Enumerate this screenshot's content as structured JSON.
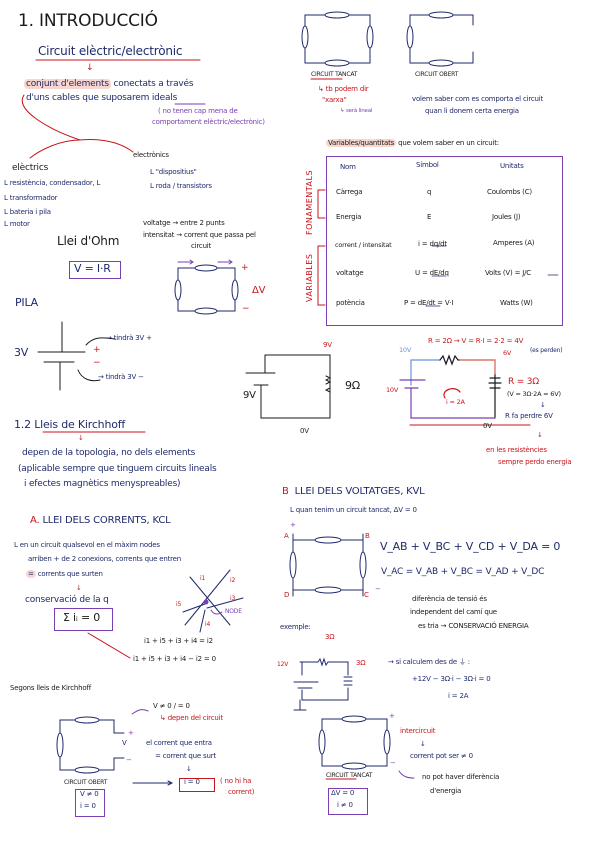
{
  "intro": {
    "title": "1. INTRODUCCIÓ",
    "subtitle": "Circuit elèctric/electrònic",
    "arrow": "↓",
    "def_line1_hl": "conjunt d'elements",
    "def_line1_rest": " conectats a través",
    "def_line2": "d'uns cables que suposarem ",
    "def_line2_ul": "ideals",
    "note_line1": "( no tenen cap mena de",
    "note_line2": "comportament elèctric/electrònic)",
    "electrics_title": "elèctrics",
    "electrics": [
      "L resistència, condensador, L",
      "L transformador",
      "L bateria i pila",
      "L motor"
    ],
    "electronics_title": "electrònics",
    "electronics": [
      "L \"dispositius\"",
      "L roda / transistors"
    ],
    "voltage_def": "voltatge → entre 2 punts",
    "intensity_def": "intensitat → corrent que passa pel",
    "intensity_def2": "circuit",
    "ohm_title": "Llei d'Ohm",
    "ohm_formula": "V = I·R",
    "delta_v": "ΔV",
    "plus": "+",
    "minus": "−"
  },
  "top_circuits": {
    "closed_label": "CIRCUIT TANCAT",
    "open_label": "CIRCUIT OBERT",
    "closed_note1": "↳ tb podem dir",
    "closed_note2": "\"xarxa\"",
    "closed_note3": "↳ serà lineal",
    "goal1": "volem saber com es comporta el circuit",
    "goal2": "quan li donem certa energia"
  },
  "variables": {
    "heading_hl": "Variables/quantitats",
    "heading_rest": " que volem saber en un circuit:",
    "group_fundamental": "FONAMENTALS",
    "group_variables": "VARIABLES",
    "headers": [
      "Nom",
      "Símbol",
      "Unitats"
    ],
    "rows": [
      {
        "name": "Càrrega",
        "symbol": "q",
        "unit": "Coulombs (C)"
      },
      {
        "name": "Energia",
        "symbol": "E",
        "unit": "Joules (J)"
      },
      {
        "name": "corrent / intensitat",
        "symbol": "i = dq/dt",
        "unit": "Amperes (A)"
      },
      {
        "name": "voltatge",
        "symbol": "U = dE/dq",
        "unit": "Volts (V) = J/C"
      },
      {
        "name": "potència",
        "symbol": "P = dE/dt = V·I",
        "unit": "Watts (W)"
      }
    ]
  },
  "pila": {
    "title": "PILA",
    "voltage": "3V",
    "plus_note": "→ tindrà 3V +",
    "minus_note": "→ tindrà 3V −",
    "plus": "+",
    "minus": "−"
  },
  "mid_circuit": {
    "v_top": "9V",
    "v_source": "9V",
    "resistor": "9Ω",
    "v_bottom": "0V"
  },
  "right_circuit": {
    "r1": "R = 2Ω → V = R·I = 2·2 = 4V",
    "r1_note": "(es perden)",
    "v_top_left": "10V",
    "v_top_right": "6V",
    "v_source": "10V",
    "current": "i = 2A",
    "r2": "R = 3Ω",
    "r2_calc": "(V = 3Ω·2A = 6V)",
    "r2_arrow": "↓",
    "r2_result": "R fa perdre 6V",
    "v_bottom": "0V",
    "conclusion_arrow": "↓",
    "conclusion1": "en les resistències",
    "conclusion2": "sempre perdo energia"
  },
  "kirchhoff": {
    "title": "1.2 Lleis de Kirchhoff",
    "arrow": "↓",
    "line1": "depen de la topologia, no dels elements",
    "line2": "(aplicable sempre que tinguem circuits lineals",
    "line3": "i efectes magnètics menyspreables)"
  },
  "kcl": {
    "title_letter": "A.",
    "title": "LLEI DELS CORRENTS, KCL",
    "line1": "L en un circuit qualsevol en el màxim nodes",
    "line2": "arriben + de 2 conexions, corrents que entren",
    "line3_hl": "=",
    "line3": " corrents que surten",
    "arrow": "↓",
    "conservation": "conservació de la q",
    "formula": "Σ iᵢ = 0",
    "node_label": "NODE",
    "currents": [
      "i1",
      "i2",
      "i3",
      "i4",
      "i5"
    ],
    "eq1": "i1 + i5 + i3 + i4 = i2",
    "eq2": "i1 + i5 + i3 + i4 − i2 = 0"
  },
  "kvl": {
    "title_letter": "B",
    "title": "LLEI DELS VOLTATGES, KVL",
    "line1": "L quan tenim un circuit tancat, ΔV = 0",
    "nodes": [
      "A",
      "B",
      "C",
      "D"
    ],
    "plus": "+",
    "minus": "−",
    "eq1": "V_AB + V_BC + V_CD + V_DA = 0",
    "eq2": "V_AC = V_AB + V_BC = V_AD + V_DC",
    "note1": "diferència de tensió és",
    "note2": "independent del camí que",
    "note3": "es tria → CONSERVACIÓ ENERGIA",
    "example": "exemple:",
    "ex_r1": "3Ω",
    "ex_r2": "3Ω",
    "ex_v": "12V",
    "ex_step": "→ si calculem des de ⏚ :",
    "ex_eq": "+12V − 3Ω·i − 3Ω·i = 0",
    "ex_result": "i = 2A"
  },
  "segons": {
    "title": "Segons lleis de Kirchhoff",
    "v_note": "V ≠ 0 / = 0",
    "v_note2": "↳ depen del circuit",
    "v_label": "V",
    "plus": "+",
    "minus": "−",
    "current1": "el corrent que entra",
    "current2": "= corrent que surt",
    "arrow": "↓",
    "open_label": "CIRCUIT OBERT",
    "open_box1": "V ≠ 0",
    "open_box2": "i = 0",
    "i_zero": "i = 0",
    "i_zero_note1": "( no hi ha",
    "i_zero_note2": "corrent)",
    "closed_label": "CIRCUIT TANCAT",
    "closed_box1": "ΔV = 0",
    "closed_box2": "i ≠ 0",
    "short": "intercircuit",
    "short_arrow": "↓",
    "short2": "corrent pot ser ≠ 0",
    "short3": "no pot haver diferència",
    "short4": "d'energia"
  },
  "colors": {
    "ink": "#1f2a6b",
    "red": "#c8161d",
    "purple": "#7a3fb5",
    "highlight": "#f7d6cf"
  }
}
